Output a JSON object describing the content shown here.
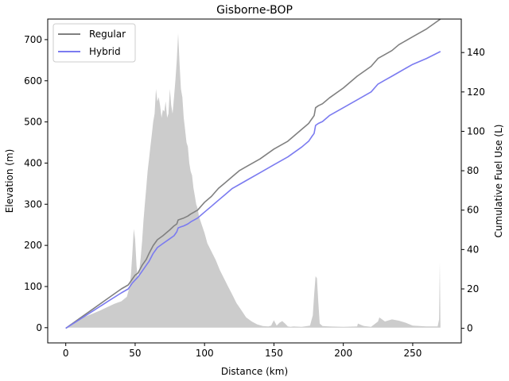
{
  "chart_data": {
    "type": "line",
    "title": "Gisborne-BOP",
    "xlabel": "Distance (km)",
    "ylabel": "Elevation (m)",
    "y2label": "Cumulative Fuel Use (L)",
    "xlim": [
      -13,
      285
    ],
    "ylim": [
      -37,
      750
    ],
    "y2lim": [
      -7.4,
      157
    ],
    "x_ticks": [
      0,
      50,
      100,
      150,
      200,
      250
    ],
    "y_ticks": [
      0,
      100,
      200,
      300,
      400,
      500,
      600,
      700
    ],
    "y2_ticks": [
      0,
      20,
      40,
      60,
      80,
      100,
      120,
      140
    ],
    "legend_position": "top-left",
    "colors": {
      "regular": "#808080",
      "hybrid": "#7b7bf0",
      "elevation_fill": "#cccccc"
    },
    "elevation_profile": {
      "x": [
        0,
        3,
        6,
        10,
        15,
        20,
        25,
        30,
        35,
        40,
        44,
        46,
        47,
        48,
        49,
        50,
        51,
        52,
        53,
        54,
        55,
        56,
        57,
        58,
        59,
        60,
        61,
        62,
        63,
        64,
        65,
        66,
        67,
        68,
        69,
        70,
        71,
        72,
        73,
        74,
        75,
        76,
        77,
        78,
        79,
        80,
        81,
        82,
        83,
        84,
        85,
        86,
        87,
        88,
        89,
        90,
        91,
        92,
        93,
        94,
        95,
        96,
        98,
        100,
        102,
        105,
        108,
        111,
        114,
        117,
        120,
        123,
        126,
        130,
        134,
        138,
        142,
        146,
        148,
        149,
        150,
        152,
        154,
        156,
        158,
        160,
        162,
        164,
        170,
        176,
        178,
        179,
        180,
        181,
        182,
        183,
        185,
        190,
        200,
        210,
        210.5,
        214,
        215,
        220,
        225,
        226,
        230,
        235,
        240,
        245,
        250,
        260,
        268,
        269,
        269.5,
        270
      ],
      "y": [
        0,
        8,
        14,
        22,
        28,
        35,
        42,
        50,
        58,
        64,
        75,
        100,
        130,
        180,
        240,
        215,
        150,
        120,
        140,
        170,
        210,
        260,
        300,
        340,
        380,
        410,
        440,
        470,
        500,
        520,
        580,
        550,
        560,
        540,
        510,
        530,
        525,
        550,
        510,
        520,
        580,
        540,
        520,
        560,
        600,
        650,
        715,
        640,
        580,
        560,
        510,
        480,
        450,
        440,
        400,
        380,
        370,
        340,
        320,
        300,
        290,
        270,
        250,
        230,
        205,
        185,
        165,
        140,
        120,
        100,
        80,
        60,
        45,
        25,
        15,
        8,
        4,
        3,
        5,
        12,
        18,
        5,
        12,
        16,
        10,
        3,
        2,
        3,
        2,
        5,
        30,
        80,
        125,
        120,
        60,
        10,
        4,
        3,
        2,
        3,
        10,
        5,
        4,
        2,
        15,
        25,
        15,
        20,
        17,
        12,
        5,
        3,
        3,
        20,
        160,
        3
      ]
    },
    "series": [
      {
        "name": "Regular",
        "x": [
          0,
          10,
          20,
          30,
          40,
          45,
          48,
          50,
          52,
          55,
          58,
          60,
          63,
          66,
          70,
          75,
          78,
          80,
          81,
          83,
          85,
          88,
          90,
          95,
          100,
          105,
          110,
          115,
          120,
          125,
          130,
          140,
          150,
          160,
          170,
          175,
          177,
          178,
          179,
          180,
          182,
          185,
          190,
          200,
          210,
          220,
          225,
          230,
          235,
          240,
          245,
          250,
          260,
          270
        ],
        "y": [
          0,
          5,
          10,
          15,
          20,
          22,
          25,
          27,
          28,
          32,
          35,
          38,
          42,
          45,
          47,
          50,
          52,
          53,
          55,
          55.5,
          56,
          57,
          58,
          60,
          64,
          67,
          71,
          74,
          77,
          80,
          82,
          86,
          91,
          95,
          101,
          104,
          106,
          107,
          108,
          112,
          113,
          114,
          117,
          122,
          128,
          133,
          137,
          139,
          141,
          144,
          146,
          148,
          152,
          157
        ]
      },
      {
        "name": "Hybrid",
        "x": [
          0,
          10,
          20,
          30,
          40,
          45,
          48,
          50,
          52,
          55,
          58,
          60,
          63,
          66,
          70,
          75,
          78,
          80,
          81,
          83,
          85,
          88,
          90,
          95,
          100,
          105,
          110,
          115,
          120,
          125,
          130,
          140,
          150,
          160,
          170,
          175,
          177,
          178,
          179,
          180,
          182,
          185,
          190,
          200,
          210,
          220,
          225,
          230,
          235,
          240,
          245,
          250,
          260,
          270
        ],
        "y": [
          0,
          4.5,
          9,
          13.5,
          18,
          20,
          23,
          24.5,
          26,
          29,
          32,
          34,
          38,
          41,
          43,
          45.5,
          47,
          49,
          51,
          51.5,
          52,
          53,
          54,
          56,
          59,
          62,
          65,
          68,
          71,
          73,
          75,
          79,
          83,
          87,
          92,
          95,
          97,
          98,
          99,
          103,
          104,
          105,
          108,
          112,
          116,
          120,
          124,
          126,
          128,
          130,
          132,
          134,
          137,
          140.5
        ]
      }
    ]
  }
}
